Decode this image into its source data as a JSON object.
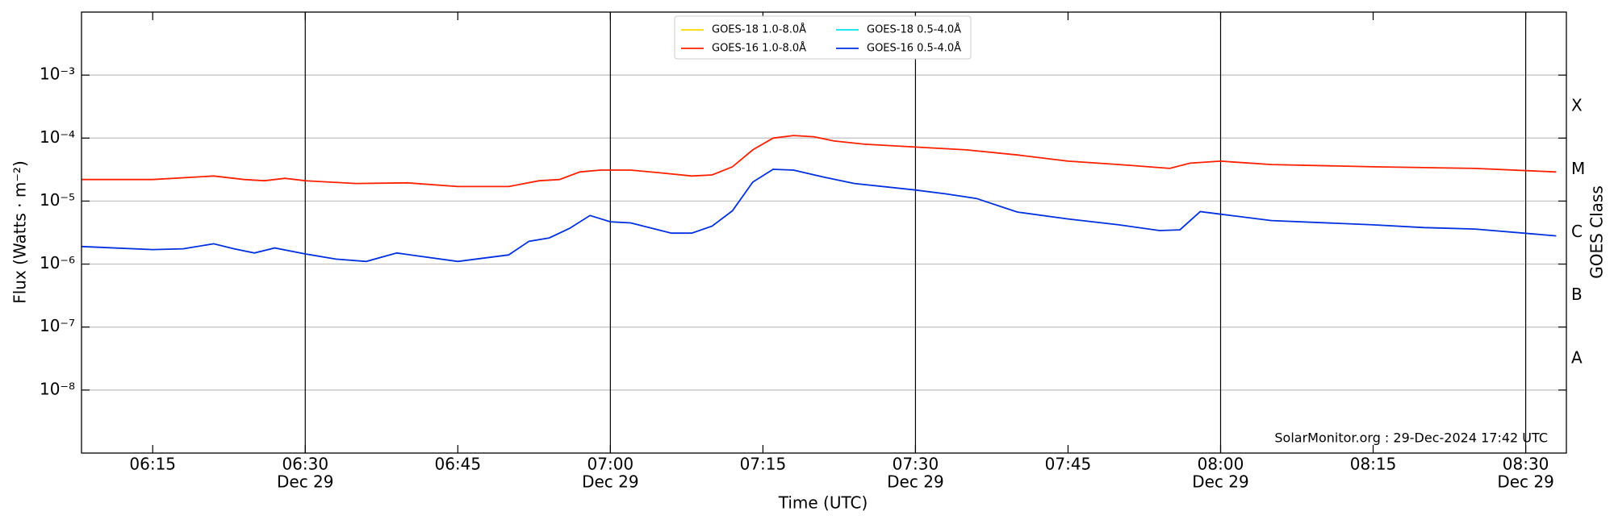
{
  "chart_data": {
    "type": "line",
    "y_label": "Flux (Watts · m⁻²)",
    "x_label": "Time (UTC)",
    "y2_label": "GOES Class",
    "annotation": "SolarMonitor.org : 29-Dec-2024 17:42 UTC",
    "log_y": true,
    "grid": true,
    "legend": "top-center",
    "xlim": [
      "06:08",
      "08:34"
    ],
    "xticks": [
      {
        "value": "06:15",
        "label": "06:15"
      },
      {
        "value": "06:30",
        "label": "06:30",
        "date": "Dec 29"
      },
      {
        "value": "06:45",
        "label": "06:45"
      },
      {
        "value": "07:00",
        "label": "07:00",
        "date": "Dec 29"
      },
      {
        "value": "07:15",
        "label": "07:15"
      },
      {
        "value": "07:30",
        "label": "07:30",
        "date": "Dec 29"
      },
      {
        "value": "07:45",
        "label": "07:45"
      },
      {
        "value": "08:00",
        "label": "08:00",
        "date": "Dec 29"
      },
      {
        "value": "08:15",
        "label": "08:15"
      },
      {
        "value": "08:30",
        "label": "08:30",
        "date": "Dec 29"
      }
    ],
    "ylim": [
      1e-09,
      0.01
    ],
    "yticks": [
      {
        "value": 1e-08,
        "label": "10⁻⁸"
      },
      {
        "value": 1e-07,
        "label": "10⁻⁷"
      },
      {
        "value": 1e-06,
        "label": "10⁻⁶"
      },
      {
        "value": 1e-05,
        "label": "10⁻⁵"
      },
      {
        "value": 0.0001,
        "label": "10⁻⁴"
      },
      {
        "value": 0.001,
        "label": "10⁻³"
      }
    ],
    "y2lim": [
      1e-09,
      0.01
    ],
    "y2ticks": [
      {
        "value": 3.16e-08,
        "label": "A"
      },
      {
        "value": 3.16e-07,
        "label": "B"
      },
      {
        "value": 3.16e-06,
        "label": "C"
      },
      {
        "value": 3.16e-05,
        "label": "M"
      },
      {
        "value": 0.000316,
        "label": "X"
      }
    ],
    "series": [
      {
        "name": "GOES-18 1.0-8.0Å",
        "color": "#ffd700",
        "x": [],
        "values": []
      },
      {
        "name": "GOES-16 1.0-8.0Å",
        "color": "#ff2000",
        "x": [
          "06:08",
          "06:15",
          "06:21",
          "06:24",
          "06:26",
          "06:28",
          "06:30",
          "06:35",
          "06:40",
          "06:45",
          "06:50",
          "06:53",
          "06:55",
          "06:57",
          "06:59",
          "07:02",
          "07:05",
          "07:08",
          "07:10",
          "07:12",
          "07:14",
          "07:16",
          "07:18",
          "07:20",
          "07:22",
          "07:25",
          "07:30",
          "07:35",
          "07:40",
          "07:45",
          "07:50",
          "07:55",
          "07:57",
          "08:00",
          "08:05",
          "08:15",
          "08:20",
          "08:25",
          "08:33"
        ],
        "values": [
          2.2e-05,
          2.2e-05,
          2.5e-05,
          2.2e-05,
          2.1e-05,
          2.3e-05,
          2.1e-05,
          1.9e-05,
          1.95e-05,
          1.7e-05,
          1.7e-05,
          2.1e-05,
          2.2e-05,
          2.9e-05,
          3.1e-05,
          3.1e-05,
          2.8e-05,
          2.5e-05,
          2.6e-05,
          3.5e-05,
          6.5e-05,
          0.0001,
          0.00011,
          0.000105,
          9e-05,
          8e-05,
          7.2e-05,
          6.5e-05,
          5.4e-05,
          4.3e-05,
          3.8e-05,
          3.3e-05,
          4e-05,
          4.3e-05,
          3.8e-05,
          3.5e-05,
          3.4e-05,
          3.3e-05,
          2.9e-05
        ]
      },
      {
        "name": "GOES-18 0.5-4.0Å",
        "color": "#00e5ee",
        "x": [],
        "values": []
      },
      {
        "name": "GOES-16 0.5-4.0Å",
        "color": "#0030e0",
        "x": [
          "06:08",
          "06:15",
          "06:18",
          "06:21",
          "06:23",
          "06:25",
          "06:27",
          "06:30",
          "06:33",
          "06:36",
          "06:39",
          "06:41",
          "06:45",
          "06:50",
          "06:52",
          "06:54",
          "06:56",
          "06:58",
          "07:00",
          "07:02",
          "07:06",
          "07:08",
          "07:10",
          "07:12",
          "07:14",
          "07:16",
          "07:18",
          "07:21",
          "07:24",
          "07:30",
          "07:33",
          "07:36",
          "07:40",
          "07:45",
          "07:50",
          "07:54",
          "07:56",
          "07:58",
          "08:00",
          "08:05",
          "08:15",
          "08:20",
          "08:25",
          "08:33"
        ],
        "values": [
          1.9e-06,
          1.7e-06,
          1.75e-06,
          2.1e-06,
          1.75e-06,
          1.5e-06,
          1.8e-06,
          1.45e-06,
          1.2e-06,
          1.1e-06,
          1.5e-06,
          1.35e-06,
          1.1e-06,
          1.4e-06,
          2.3e-06,
          2.6e-06,
          3.7e-06,
          5.9e-06,
          4.7e-06,
          4.5e-06,
          3.1e-06,
          3.1e-06,
          4e-06,
          7e-06,
          2e-05,
          3.2e-05,
          3.1e-05,
          2.4e-05,
          1.9e-05,
          1.5e-05,
          1.3e-05,
          1.1e-05,
          6.7e-06,
          5.2e-06,
          4.2e-06,
          3.4e-06,
          3.5e-06,
          6.8e-06,
          6.2e-06,
          4.9e-06,
          4.2e-06,
          3.8e-06,
          3.6e-06,
          2.8e-06
        ]
      }
    ]
  }
}
